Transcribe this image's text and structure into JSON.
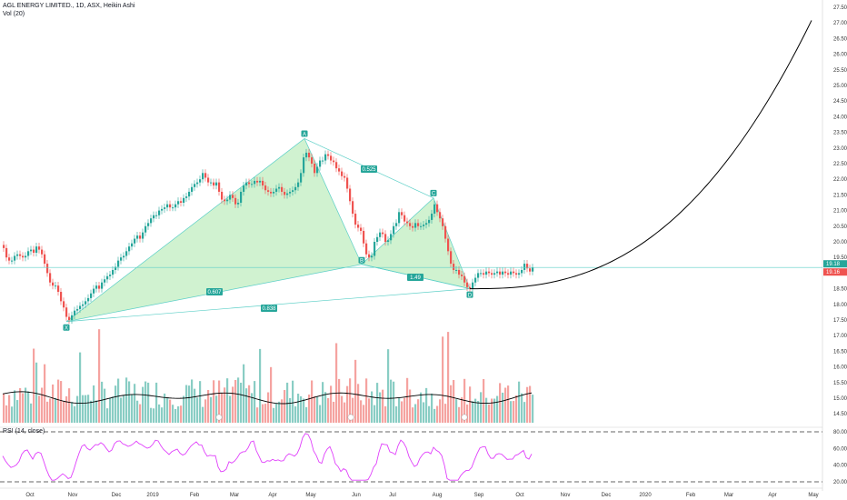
{
  "header": {
    "title": "AGL ENERGY LIMITED., 1D, ASX, Heikin Ashi",
    "volume_label": "Vol (20)",
    "rsi_label": "RSI (14, close)"
  },
  "colors": {
    "up": "#26a69a",
    "down": "#ef5350",
    "vol_up": "#89cdc4",
    "vol_down": "#f5a3a0",
    "pattern_fill": "#c8f0c8",
    "pattern_line": "#5ccfc7",
    "rsi": "#e040fb",
    "price_tag": "#26a69a",
    "price_tag2": "#ef5350"
  },
  "chart_data": {
    "type": "candlestick",
    "y_axis_ticks": [
      "27.50",
      "27.00",
      "26.50",
      "26.00",
      "25.50",
      "25.00",
      "24.50",
      "24.00",
      "23.50",
      "23.00",
      "22.50",
      "22.00",
      "21.50",
      "21.00",
      "20.50",
      "20.00",
      "19.50",
      "19.00",
      "18.50",
      "18.00",
      "17.50",
      "17.00",
      "16.50",
      "16.00",
      "15.50",
      "15.00",
      "14.50"
    ],
    "rsi_ticks": [
      "80.00",
      "60.00",
      "40.00",
      "20.00"
    ],
    "x_axis_ticks": [
      "Oct",
      "Nov",
      "Dec",
      "2019",
      "Feb",
      "Mar",
      "Apr",
      "May",
      "Jun",
      "Jul",
      "Aug",
      "Sep",
      "Oct",
      "Nov",
      "Dec",
      "2020",
      "Feb",
      "Mar",
      "Apr",
      "May"
    ],
    "current_price": "19.18",
    "current_price2": "19.16",
    "pattern_points": [
      {
        "label": "X",
        "date": "2018-11-01",
        "price": 17.45
      },
      {
        "label": "A",
        "date": "2019-05-01",
        "price": 23.3
      },
      {
        "label": "B",
        "date": "2019-06-01",
        "price": 19.28
      },
      {
        "label": "C",
        "date": "2019-07-20",
        "price": 21.4
      },
      {
        "label": "D",
        "date": "2019-08-25",
        "price": 18.5
      }
    ],
    "ratios": [
      {
        "label": "0.525"
      },
      {
        "label": "0.607"
      },
      {
        "label": "1.49"
      },
      {
        "label": "0.838"
      }
    ],
    "price_path": [
      [
        0,
        19.9
      ],
      [
        3,
        19.8
      ],
      [
        6,
        19.5
      ],
      [
        9,
        19.4
      ],
      [
        12,
        19.4
      ],
      [
        15,
        19.55
      ],
      [
        18,
        19.6
      ],
      [
        21,
        19.55
      ],
      [
        24,
        19.5
      ],
      [
        27,
        19.55
      ],
      [
        30,
        19.7
      ],
      [
        33,
        19.75
      ],
      [
        36,
        19.65
      ],
      [
        39,
        19.85
      ],
      [
        42,
        19.75
      ],
      [
        45,
        19.6
      ],
      [
        48,
        19.3
      ],
      [
        51,
        19.0
      ],
      [
        54,
        18.7
      ],
      [
        57,
        18.6
      ],
      [
        60,
        18.6
      ],
      [
        63,
        18.4
      ],
      [
        66,
        18.1
      ],
      [
        69,
        17.9
      ],
      [
        72,
        17.6
      ],
      [
        75,
        17.5
      ],
      [
        78,
        17.65
      ],
      [
        81,
        17.8
      ],
      [
        84,
        17.85
      ],
      [
        87,
        17.95
      ],
      [
        90,
        18.0
      ],
      [
        93,
        18.1
      ],
      [
        96,
        18.2
      ],
      [
        99,
        18.35
      ],
      [
        102,
        18.5
      ],
      [
        105,
        18.6
      ],
      [
        108,
        18.5
      ],
      [
        111,
        18.7
      ],
      [
        114,
        18.8
      ],
      [
        117,
        18.9
      ],
      [
        120,
        18.95
      ],
      [
        123,
        19.1
      ],
      [
        126,
        19.2
      ],
      [
        129,
        19.4
      ],
      [
        132,
        19.5
      ],
      [
        135,
        19.55
      ],
      [
        138,
        19.7
      ],
      [
        141,
        19.85
      ],
      [
        144,
        19.95
      ],
      [
        147,
        20.1
      ],
      [
        150,
        20.2
      ],
      [
        153,
        20.1
      ],
      [
        156,
        20.3
      ],
      [
        159,
        20.5
      ],
      [
        162,
        20.6
      ],
      [
        165,
        20.75
      ],
      [
        168,
        20.85
      ],
      [
        171,
        20.85
      ],
      [
        174,
        21.0
      ],
      [
        177,
        21.05
      ],
      [
        180,
        21.1
      ],
      [
        183,
        21.2
      ],
      [
        186,
        21.1
      ],
      [
        189,
        21.1
      ],
      [
        192,
        21.2
      ],
      [
        195,
        21.3
      ],
      [
        198,
        21.25
      ],
      [
        201,
        21.4
      ],
      [
        204,
        21.45
      ],
      [
        207,
        21.6
      ],
      [
        210,
        21.75
      ],
      [
        213,
        21.85
      ],
      [
        216,
        21.9
      ],
      [
        219,
        22.0
      ],
      [
        222,
        22.2
      ],
      [
        225,
        22.05
      ],
      [
        228,
        21.9
      ],
      [
        231,
        21.9
      ],
      [
        234,
        21.8
      ],
      [
        237,
        21.9
      ],
      [
        240,
        21.6
      ],
      [
        243,
        21.35
      ],
      [
        246,
        21.3
      ],
      [
        249,
        21.35
      ],
      [
        252,
        21.5
      ],
      [
        255,
        21.4
      ],
      [
        258,
        21.2
      ],
      [
        261,
        21.25
      ],
      [
        264,
        21.6
      ],
      [
        267,
        21.8
      ],
      [
        270,
        21.9
      ],
      [
        273,
        21.85
      ],
      [
        276,
        21.85
      ],
      [
        279,
        21.95
      ],
      [
        282,
        21.9
      ],
      [
        285,
        21.95
      ],
      [
        288,
        21.8
      ],
      [
        291,
        21.65
      ],
      [
        294,
        21.6
      ],
      [
        297,
        21.55
      ],
      [
        300,
        21.6
      ],
      [
        303,
        21.7
      ],
      [
        306,
        21.75
      ],
      [
        309,
        21.6
      ],
      [
        312,
        21.5
      ],
      [
        315,
        21.55
      ],
      [
        318,
        21.6
      ],
      [
        321,
        21.65
      ],
      [
        324,
        21.75
      ],
      [
        327,
        21.9
      ],
      [
        330,
        22.2
      ],
      [
        333,
        22.7
      ],
      [
        336,
        22.85
      ],
      [
        339,
        22.7
      ],
      [
        342,
        22.5
      ],
      [
        345,
        22.2
      ],
      [
        348,
        22.4
      ],
      [
        351,
        22.6
      ],
      [
        354,
        22.6
      ],
      [
        357,
        22.8
      ],
      [
        360,
        22.75
      ],
      [
        363,
        22.6
      ],
      [
        366,
        22.55
      ],
      [
        369,
        22.35
      ],
      [
        372,
        22.25
      ],
      [
        375,
        22.1
      ],
      [
        378,
        22.05
      ],
      [
        381,
        21.7
      ],
      [
        384,
        21.3
      ],
      [
        387,
        20.9
      ],
      [
        390,
        20.55
      ],
      [
        393,
        20.45
      ],
      [
        396,
        20.35
      ],
      [
        399,
        19.95
      ],
      [
        402,
        19.6
      ],
      [
        405,
        19.5
      ],
      [
        408,
        19.55
      ],
      [
        411,
        20.0
      ],
      [
        414,
        20.15
      ],
      [
        417,
        20.3
      ],
      [
        420,
        20.25
      ],
      [
        423,
        20.0
      ],
      [
        426,
        20.05
      ],
      [
        429,
        20.25
      ],
      [
        432,
        20.5
      ],
      [
        435,
        20.6
      ],
      [
        438,
        20.95
      ],
      [
        441,
        20.85
      ],
      [
        444,
        20.65
      ],
      [
        447,
        20.6
      ],
      [
        450,
        20.5
      ],
      [
        453,
        20.45
      ],
      [
        456,
        20.6
      ],
      [
        459,
        20.5
      ],
      [
        462,
        20.5
      ],
      [
        465,
        20.55
      ],
      [
        468,
        20.6
      ],
      [
        471,
        20.7
      ],
      [
        474,
        20.9
      ],
      [
        477,
        21.2
      ],
      [
        480,
        20.95
      ],
      [
        483,
        20.75
      ],
      [
        486,
        20.5
      ],
      [
        489,
        20.1
      ],
      [
        492,
        19.7
      ],
      [
        495,
        19.3
      ],
      [
        498,
        19.1
      ],
      [
        501,
        19.1
      ],
      [
        504,
        18.95
      ],
      [
        507,
        18.9
      ],
      [
        510,
        18.7
      ],
      [
        513,
        18.55
      ],
      [
        516,
        18.5
      ],
      [
        519,
        18.7
      ],
      [
        522,
        18.85
      ],
      [
        525,
        19.0
      ],
      [
        528,
        19.0
      ],
      [
        531,
        18.95
      ],
      [
        534,
        19.05
      ],
      [
        537,
        19.0
      ],
      [
        540,
        18.95
      ],
      [
        543,
        19.0
      ],
      [
        546,
        19.05
      ],
      [
        549,
        18.95
      ],
      [
        552,
        19.05
      ],
      [
        555,
        19.0
      ],
      [
        558,
        18.95
      ],
      [
        561,
        19.05
      ],
      [
        564,
        19.0
      ],
      [
        567,
        18.95
      ],
      [
        570,
        19.0
      ],
      [
        573,
        19.1
      ],
      [
        576,
        19.3
      ],
      [
        579,
        19.15
      ],
      [
        582,
        19.05
      ],
      [
        585,
        19.18
      ]
    ],
    "projection_curve": "parabolic arc from D (2019-08-25, 18.5) rising to ~27.2 at May 2020"
  }
}
